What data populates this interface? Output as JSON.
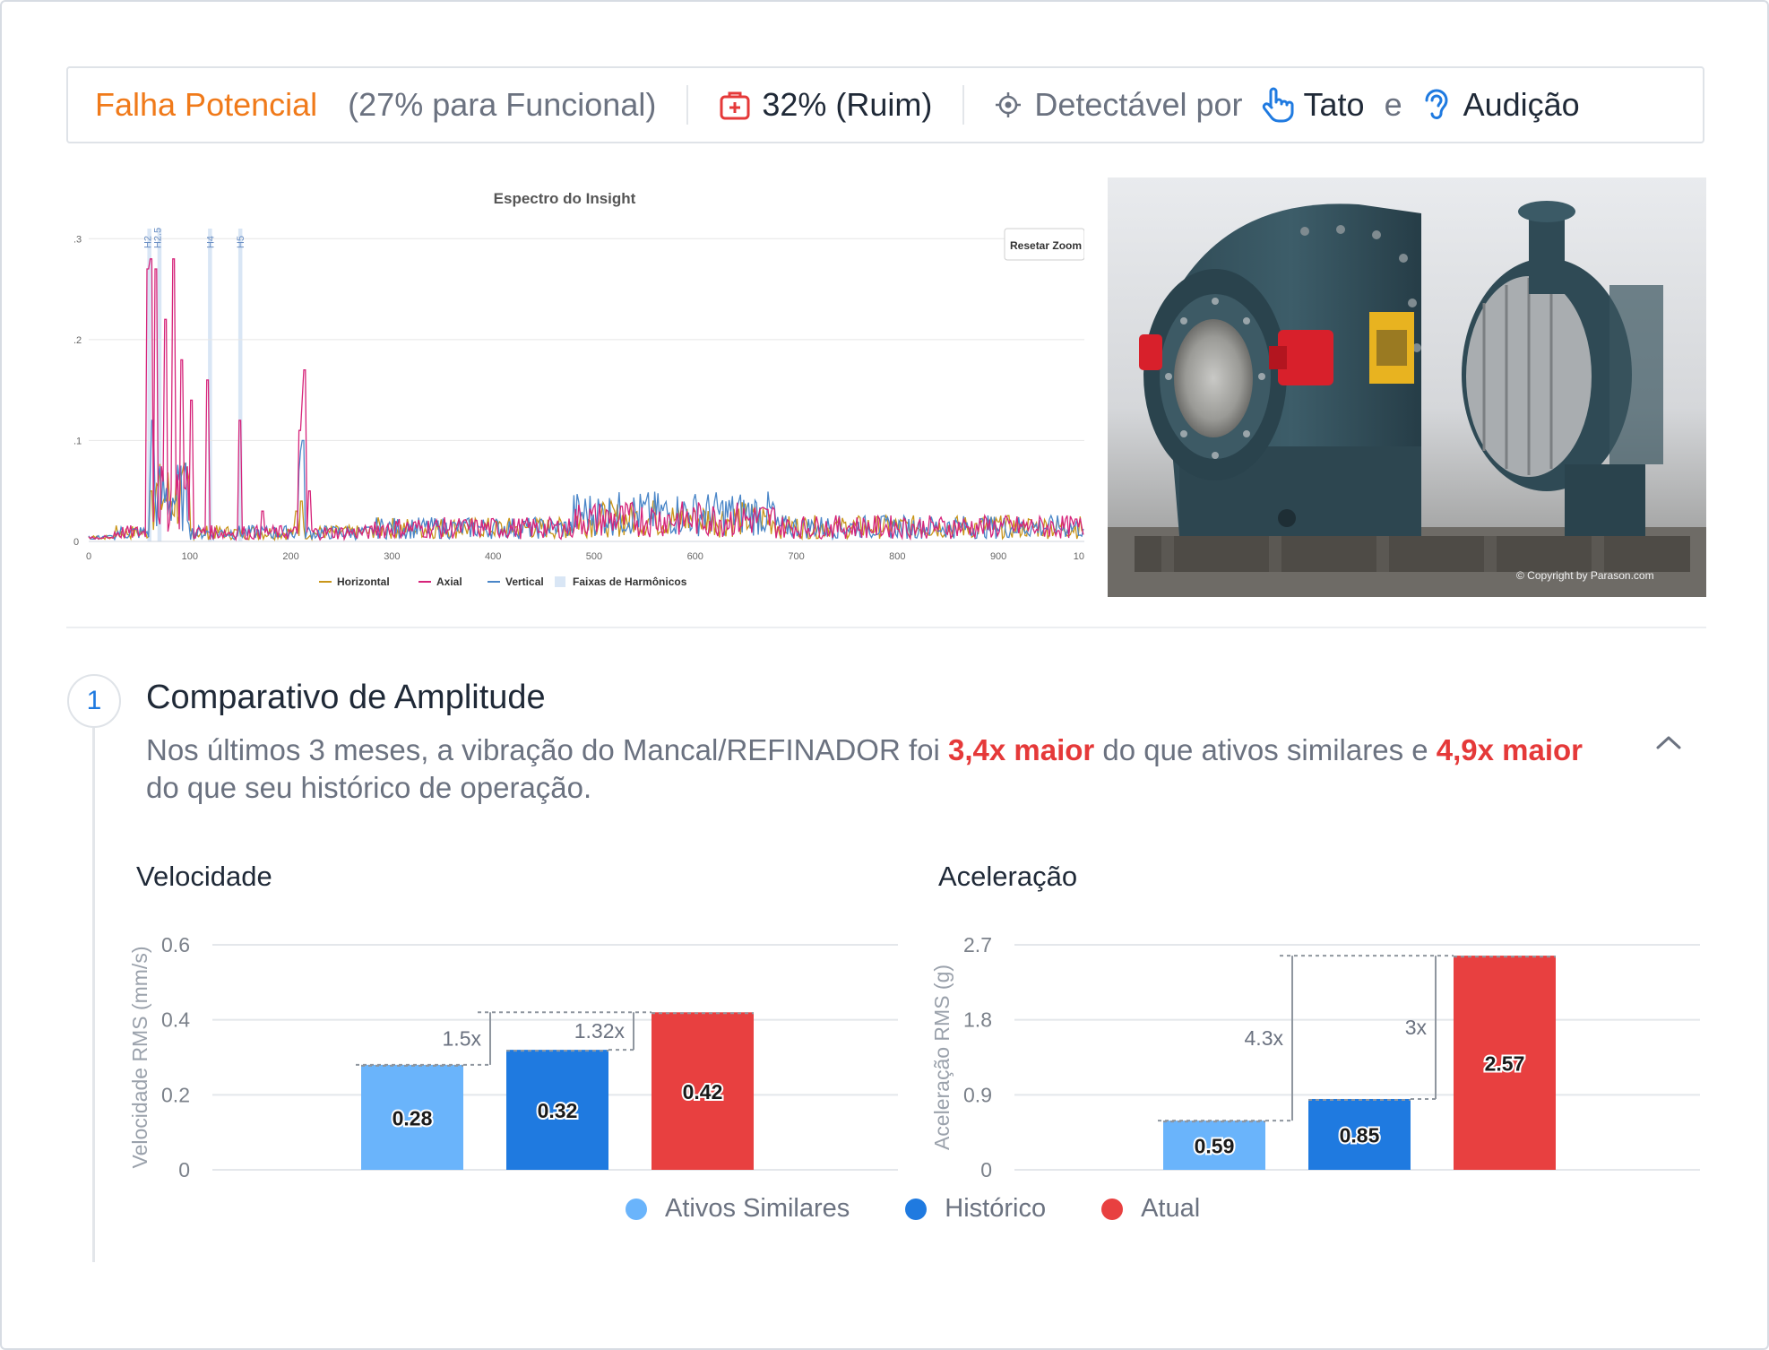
{
  "status": {
    "title": "Falha Potencial",
    "functional_note": "(27% para Funcional)",
    "health_value": "32% (Ruim)",
    "detectable_label": "Detectável por",
    "sense_1": "Tato",
    "connector": "e",
    "sense_2": "Audição",
    "icons": [
      "medical-kit-icon",
      "crosshair-icon",
      "hand-pointer-icon",
      "ear-icon"
    ],
    "colors": {
      "title": "#f07a1a",
      "health_icon": "#e53939",
      "sense_icons": "#1f7ae0"
    }
  },
  "spectrum": {
    "title": "Espectro do Insight",
    "reset_button": "Resetar Zoom",
    "harmonic_labels": [
      "H2",
      "H2.5",
      "H4",
      "H5"
    ],
    "y_ticks": [
      ".3",
      ".2",
      ".1",
      "0"
    ],
    "x_ticks": [
      "0",
      "100",
      "200",
      "300",
      "400",
      "500",
      "600",
      "700",
      "800",
      "900",
      "10"
    ],
    "legend": [
      "Horizontal",
      "Axial",
      "Vertical",
      "Faixas de Harmônicos"
    ],
    "colors": {
      "horizontal": "#c9961a",
      "axial": "#d6247a",
      "vertical": "#4a86c8",
      "harmonic_band": "#d9e6f5"
    }
  },
  "photo": {
    "copyright": "© Copyright by Parason.com"
  },
  "section": {
    "step": "1",
    "title": "Comparativo de Amplitude",
    "desc_part1": "Nos últimos 3 meses, a vibração do Mancal/REFINADOR foi ",
    "desc_hl1": "3,4x maior",
    "desc_part2": " do que ativos similares e ",
    "desc_hl2": "4,9x maior",
    "desc_part3": " do que seu histórico de operação."
  },
  "chart_data": [
    {
      "type": "bar",
      "title": "Velocidade",
      "ylabel": "Velocidade RMS (mm/s)",
      "y_ticks": [
        "0.6",
        "0.4",
        "0.2",
        "0"
      ],
      "ylim": [
        0,
        0.6
      ],
      "categories": [
        "Ativos Similares",
        "Histórico",
        "Atual"
      ],
      "values": [
        0.28,
        0.32,
        0.42
      ],
      "value_labels": [
        "0.28",
        "0.32",
        "0.42"
      ],
      "ratios": [
        "1.5x",
        "1.32x"
      ]
    },
    {
      "type": "bar",
      "title": "Aceleração",
      "ylabel": "Aceleração RMS (g)",
      "y_ticks": [
        "2.7",
        "1.8",
        "0.9",
        "0"
      ],
      "ylim": [
        0,
        2.7
      ],
      "categories": [
        "Ativos Similares",
        "Histórico",
        "Atual"
      ],
      "values": [
        0.59,
        0.85,
        2.57
      ],
      "value_labels": [
        "0.59",
        "0.85",
        "2.57"
      ],
      "ratios": [
        "4.3x",
        "3x"
      ]
    }
  ],
  "legend": {
    "items": [
      "Ativos Similares",
      "Histórico",
      "Atual"
    ],
    "colors": [
      "#6ab4fb",
      "#1f7ae0",
      "#e84040"
    ]
  }
}
